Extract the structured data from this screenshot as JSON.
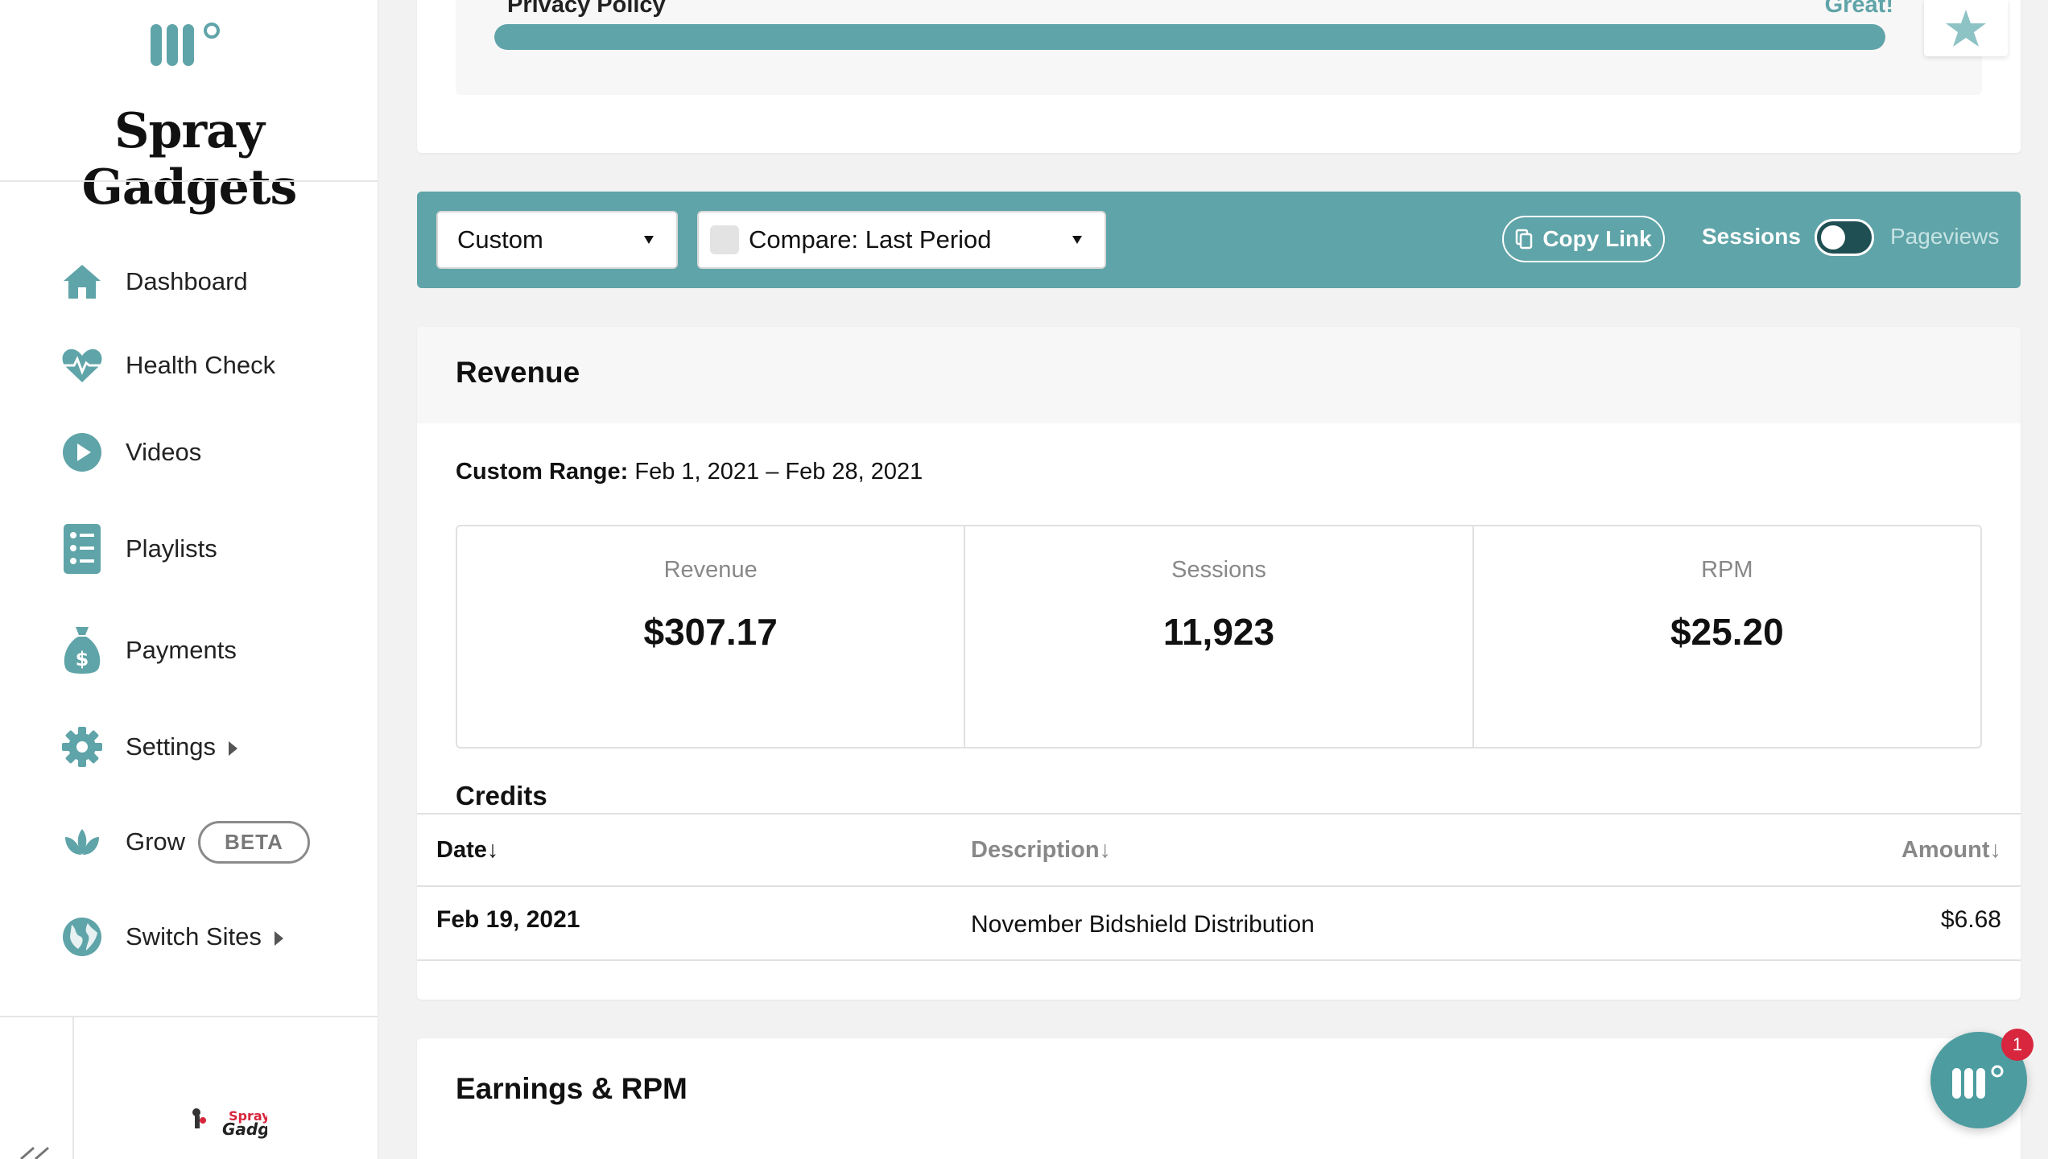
{
  "sidebar": {
    "site_name": "Spray Gadgets",
    "items": [
      {
        "label": "Dashboard",
        "icon": "home-icon"
      },
      {
        "label": "Health Check",
        "icon": "heartbeat-icon"
      },
      {
        "label": "Videos",
        "icon": "play-icon"
      },
      {
        "label": "Playlists",
        "icon": "list-icon"
      },
      {
        "label": "Payments",
        "icon": "money-bag-icon"
      },
      {
        "label": "Settings",
        "icon": "gear-icon"
      },
      {
        "label": "Grow",
        "icon": "lotus-icon",
        "badge": "BETA"
      },
      {
        "label": "Switch Sites",
        "icon": "globe-icon"
      }
    ],
    "thumb_text": "Spray Gadgets"
  },
  "top_card": {
    "policy_label": "Privacy Policy",
    "policy_status": "Great!",
    "progress": 1.0
  },
  "filter_bar": {
    "period_select": "Custom",
    "compare_select": "Compare: Last Period",
    "copy_link": "Copy Link",
    "sessions_label": "Sessions",
    "pageviews_label": "Pageviews"
  },
  "revenue": {
    "title": "Revenue",
    "range_label": "Custom Range:",
    "range_value": "Feb 1, 2021 – Feb 28, 2021",
    "stats": [
      {
        "label": "Revenue",
        "value": "$307.17"
      },
      {
        "label": "Sessions",
        "value": "11,923"
      },
      {
        "label": "RPM",
        "value": "$25.20"
      }
    ],
    "credits_title": "Credits",
    "columns": [
      "Date",
      "Description",
      "Amount"
    ],
    "rows": [
      {
        "date": "Feb 19, 2021",
        "description": "November Bidshield Distribution",
        "amount": "$6.68"
      }
    ]
  },
  "earnings": {
    "title": "Earnings & RPM"
  },
  "chat": {
    "badge_count": "1"
  },
  "colors": {
    "accent": "#5fa4a8",
    "badge": "#d7263d"
  }
}
